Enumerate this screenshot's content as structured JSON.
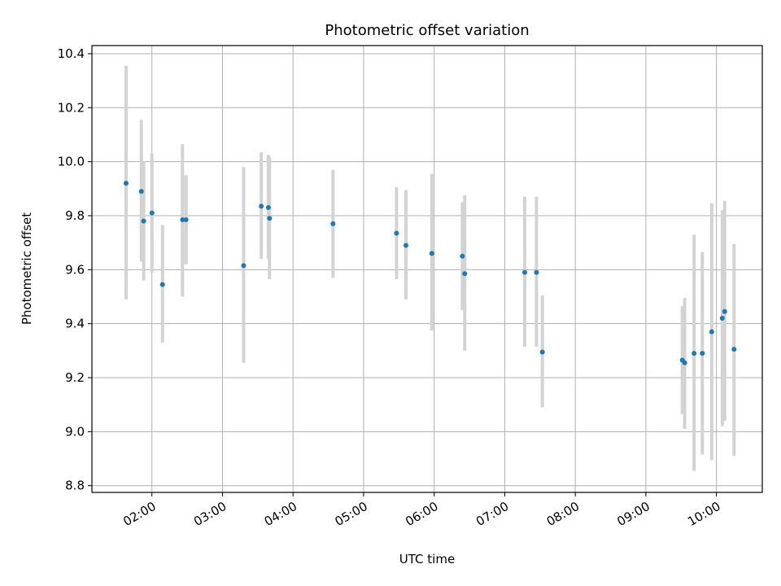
{
  "chart_data": {
    "type": "scatter",
    "title": "Photometric offset variation",
    "xlabel": "UTC time",
    "ylabel": "Photometric offset",
    "x_is_time": true,
    "xlim": [
      "01:09",
      "10:39"
    ],
    "ylim": [
      8.775,
      10.43
    ],
    "grid": true,
    "xticks": [
      "02:00",
      "03:00",
      "04:00",
      "05:00",
      "06:00",
      "07:00",
      "08:00",
      "09:00",
      "10:00"
    ],
    "yticks": [
      8.8,
      9.0,
      9.2,
      9.4,
      9.6,
      9.8,
      10.0,
      10.2,
      10.4
    ],
    "ytick_labels": [
      "8.8",
      "9.0",
      "9.2",
      "9.4",
      "9.6",
      "9.8",
      "10.0",
      "10.2",
      "10.4"
    ],
    "marker_color": "#1f77b4",
    "errorbar_color": "#d3d3d3",
    "points": [
      {
        "x": "01:38",
        "y": 9.92,
        "err_low": 9.49,
        "err_high": 10.355
      },
      {
        "x": "01:51",
        "y": 9.89,
        "err_low": 9.63,
        "err_high": 10.155
      },
      {
        "x": "01:53",
        "y": 9.78,
        "err_low": 9.56,
        "err_high": 10.0
      },
      {
        "x": "02:00",
        "y": 9.81,
        "err_low": 9.59,
        "err_high": 10.03
      },
      {
        "x": "02:09",
        "y": 9.545,
        "err_low": 9.33,
        "err_high": 9.765
      },
      {
        "x": "02:26",
        "y": 9.785,
        "err_low": 9.5,
        "err_high": 10.065
      },
      {
        "x": "02:29",
        "y": 9.785,
        "err_low": 9.62,
        "err_high": 9.95
      },
      {
        "x": "03:18",
        "y": 9.615,
        "err_low": 9.255,
        "err_high": 9.98
      },
      {
        "x": "03:33",
        "y": 9.835,
        "err_low": 9.64,
        "err_high": 10.035
      },
      {
        "x": "03:39",
        "y": 9.83,
        "err_low": 9.64,
        "err_high": 10.025
      },
      {
        "x": "03:40",
        "y": 9.79,
        "err_low": 9.565,
        "err_high": 10.015
      },
      {
        "x": "04:34",
        "y": 9.77,
        "err_low": 9.57,
        "err_high": 9.97
      },
      {
        "x": "05:28",
        "y": 9.735,
        "err_low": 9.565,
        "err_high": 9.905
      },
      {
        "x": "05:36",
        "y": 9.69,
        "err_low": 9.49,
        "err_high": 9.895
      },
      {
        "x": "05:58",
        "y": 9.66,
        "err_low": 9.375,
        "err_high": 9.955
      },
      {
        "x": "06:24",
        "y": 9.65,
        "err_low": 9.45,
        "err_high": 9.85
      },
      {
        "x": "06:26",
        "y": 9.585,
        "err_low": 9.3,
        "err_high": 9.875
      },
      {
        "x": "07:17",
        "y": 9.59,
        "err_low": 9.315,
        "err_high": 9.87
      },
      {
        "x": "07:27",
        "y": 9.59,
        "err_low": 9.315,
        "err_high": 9.87
      },
      {
        "x": "07:32",
        "y": 9.295,
        "err_low": 9.09,
        "err_high": 9.505
      },
      {
        "x": "09:31",
        "y": 9.265,
        "err_low": 9.065,
        "err_high": 9.465
      },
      {
        "x": "09:33",
        "y": 9.255,
        "err_low": 9.01,
        "err_high": 9.495
      },
      {
        "x": "09:41",
        "y": 9.29,
        "err_low": 8.855,
        "err_high": 9.73
      },
      {
        "x": "09:48",
        "y": 9.29,
        "err_low": 8.915,
        "err_high": 9.665
      },
      {
        "x": "09:56",
        "y": 9.37,
        "err_low": 8.895,
        "err_high": 9.845
      },
      {
        "x": "10:05",
        "y": 9.42,
        "err_low": 9.02,
        "err_high": 9.82
      },
      {
        "x": "10:07",
        "y": 9.445,
        "err_low": 9.04,
        "err_high": 9.855
      },
      {
        "x": "10:15",
        "y": 9.305,
        "err_low": 8.91,
        "err_high": 9.695
      }
    ]
  }
}
